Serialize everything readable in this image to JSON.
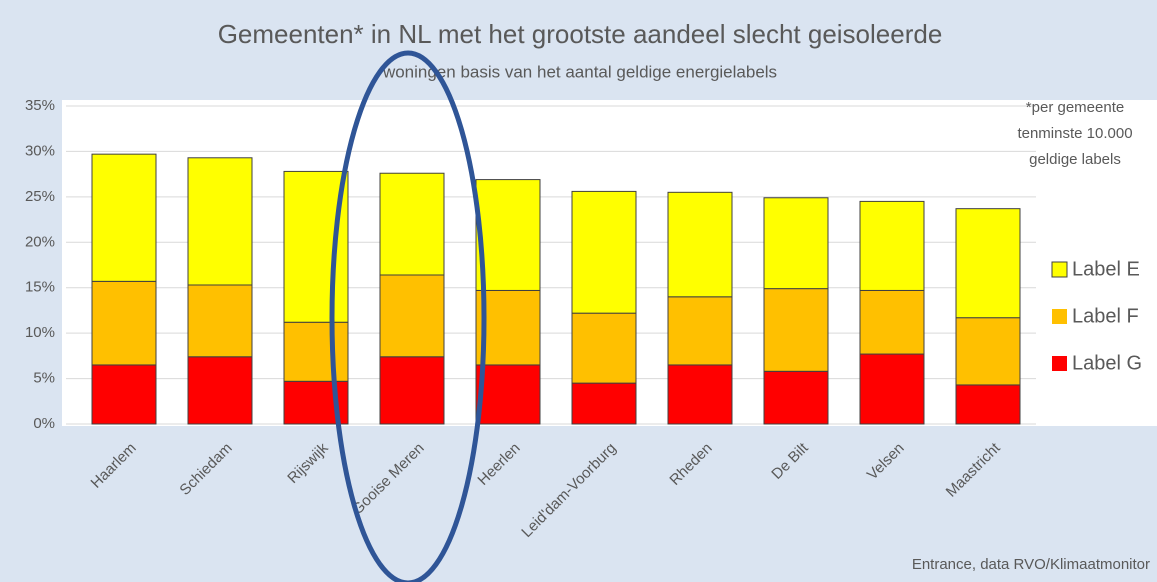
{
  "chart_data": {
    "type": "stacked_bar",
    "title": "Gemeenten* in NL met het grootste aandeel slecht geisoleerde",
    "subtitle": "woningen basis van het aantal geldige energielabels",
    "note": [
      "*per gemeente",
      "tenminste 10.000",
      "geldige labels"
    ],
    "source": "Entrance, data RVO/Klimaatmonitor",
    "categories": [
      "Haarlem",
      "Schiedam",
      "Rijswijk",
      "Gooise Meren",
      "Heerlen",
      "Leid'dam-Voorburg",
      "Rheden",
      "De Bilt",
      "Velsen",
      "Maastricht"
    ],
    "series": [
      {
        "name": "Label E",
        "color": "#ffff00",
        "values": [
          14.0,
          14.0,
          16.6,
          11.2,
          12.2,
          13.4,
          11.5,
          10.0,
          9.8,
          12.0
        ]
      },
      {
        "name": "Label F",
        "color": "#ffc000",
        "values": [
          9.2,
          7.9,
          6.5,
          9.0,
          8.2,
          7.7,
          7.5,
          9.1,
          7.0,
          7.4
        ]
      },
      {
        "name": "Label G",
        "color": "#ff0000",
        "values": [
          6.5,
          7.4,
          4.7,
          7.4,
          6.5,
          4.5,
          6.5,
          5.8,
          7.7,
          4.3
        ]
      }
    ],
    "ylim": [
      0,
      35
    ],
    "yticks": [
      {
        "value": 0,
        "label": "0%"
      },
      {
        "value": 5,
        "label": "5%"
      },
      {
        "value": 10,
        "label": "10%"
      },
      {
        "value": 15,
        "label": "15%"
      },
      {
        "value": 20,
        "label": "20%"
      },
      {
        "value": 25,
        "label": "25%"
      },
      {
        "value": 30,
        "label": "30%"
      },
      {
        "value": 35,
        "label": "35%"
      }
    ],
    "grid": true,
    "legend": "right"
  }
}
